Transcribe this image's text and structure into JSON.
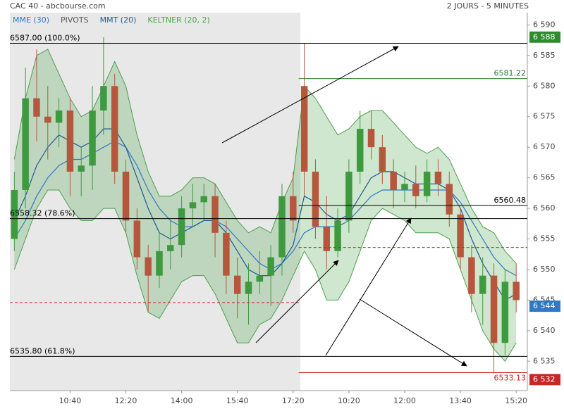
{
  "chart_data": {
    "type": "candlestick",
    "title": "CAC 40 - abcbourse.com",
    "subtitle": "2 JOURS - 5 MINUTES",
    "categories": [
      null,
      null,
      null,
      null,
      null,
      "10:40",
      null,
      null,
      null,
      null,
      "12:20",
      null,
      null,
      null,
      null,
      "14:00",
      null,
      null,
      null,
      null,
      "15:40",
      null,
      null,
      null,
      null,
      "17:20",
      null,
      null,
      null,
      null,
      "10:20",
      null,
      null,
      null,
      null,
      "12:00",
      null,
      null,
      null,
      null,
      "13:40",
      null,
      null,
      null,
      null,
      "15:20"
    ],
    "open": [
      6555,
      6563,
      6578,
      6575,
      6574,
      6576,
      6566,
      6567,
      6576,
      6580,
      6566,
      6558,
      6552,
      6549,
      6553,
      6554,
      6560,
      6561,
      6562,
      6556,
      6549,
      6546,
      6548,
      6549,
      6552,
      6562,
      6580,
      6566,
      6557,
      6553,
      6558,
      6566,
      6573,
      6570,
      6566,
      6563,
      6564,
      6562,
      6566,
      6564,
      6559,
      6552,
      6546,
      6549,
      6538,
      6548
    ],
    "high": [
      6566,
      6583,
      6586,
      6580,
      6578,
      6578,
      6570,
      6580,
      6588,
      6582,
      6568,
      6560,
      6554,
      6556,
      6558,
      6562,
      6564,
      6564,
      6564,
      6558,
      6552,
      6551,
      6553,
      6554,
      6564,
      6566,
      6587,
      6568,
      6562,
      6560,
      6568,
      6576,
      6576,
      6572,
      6568,
      6566,
      6567,
      6568,
      6568,
      6566,
      6560,
      6554,
      6552,
      6551,
      6550,
      6551
    ],
    "low": [
      6553,
      6560,
      6571,
      6568,
      6570,
      6562,
      6562,
      6563,
      6572,
      6564,
      6556,
      6550,
      6543,
      6547,
      6550,
      6552,
      6557,
      6558,
      6552,
      6546,
      6542,
      6541,
      6546,
      6544,
      6549,
      6556,
      6562,
      6555,
      6550,
      6552,
      6556,
      6564,
      6568,
      6564,
      6560,
      6561,
      6560,
      6561,
      6562,
      6557,
      6550,
      6543,
      6541,
      6533,
      6536,
      6543
    ],
    "close": [
      6563,
      6578,
      6575,
      6574,
      6576,
      6566,
      6567,
      6576,
      6580,
      6566,
      6558,
      6552,
      6549,
      6553,
      6554,
      6560,
      6561,
      6562,
      6556,
      6549,
      6546,
      6548,
      6549,
      6552,
      6562,
      6558,
      6566,
      6557,
      6553,
      6558,
      6566,
      6573,
      6570,
      6566,
      6563,
      6564,
      6562,
      6566,
      6564,
      6559,
      6552,
      6546,
      6549,
      6538,
      6548,
      6545
    ],
    "up_color": "#3f9a3f",
    "down_color": "#b5573c",
    "series": [
      {
        "name": "MME (30)",
        "color": "#2f78c4",
        "values": [
          6555,
          6558,
          6562,
          6565,
          6567,
          6568,
          6568,
          6569,
          6570,
          6571,
          6570,
          6567,
          6563,
          6560,
          6558,
          6557,
          6557,
          6558,
          6558,
          6557,
          6555,
          6553,
          6551,
          6550,
          6551,
          6553,
          6556,
          6557,
          6557,
          6557,
          6558,
          6560,
          6562,
          6563,
          6563,
          6563,
          6563,
          6563,
          6563,
          6563,
          6561,
          6558,
          6555,
          6552,
          6550,
          6549
        ]
      },
      {
        "name": "MMT (20)",
        "color": "#1d5a96",
        "values": [
          6558,
          6562,
          6567,
          6570,
          6572,
          6571,
          6570,
          6571,
          6573,
          6573,
          6570,
          6565,
          6560,
          6556,
          6555,
          6556,
          6557,
          6558,
          6558,
          6556,
          6553,
          6550,
          6549,
          6549,
          6551,
          6554,
          6562,
          6561,
          6559,
          6558,
          6559,
          6562,
          6565,
          6566,
          6566,
          6565,
          6564,
          6564,
          6564,
          6563,
          6560,
          6555,
          6551,
          6548,
          6545,
          6546
        ]
      }
    ],
    "band": {
      "name": "KELTNER (20, 2)",
      "color": "#4e9e4e",
      "fill": "rgba(80,170,80,0.28)",
      "upper": [
        6568,
        6578,
        6585,
        6586,
        6582,
        6578,
        6575,
        6576,
        6580,
        6584,
        6580,
        6572,
        6566,
        6562,
        6562,
        6563,
        6565,
        6565,
        6564,
        6561,
        6558,
        6556,
        6557,
        6556,
        6561,
        6565,
        6580,
        6578,
        6575,
        6572,
        6573,
        6575,
        6576,
        6576,
        6574,
        6572,
        6570,
        6569,
        6570,
        6568,
        6564,
        6560,
        6557,
        6556,
        6553,
        6551
      ],
      "lower": [
        6550,
        6555,
        6560,
        6563,
        6563,
        6560,
        6558,
        6558,
        6560,
        6560,
        6556,
        6549,
        6543,
        6542,
        6545,
        6548,
        6549,
        6549,
        6546,
        6542,
        6538,
        6538,
        6541,
        6542,
        6545,
        6549,
        6553,
        6550,
        6545,
        6545,
        6548,
        6553,
        6558,
        6560,
        6559,
        6558,
        6556,
        6556,
        6556,
        6555,
        6550,
        6545,
        6540,
        6537,
        6535,
        6538
      ]
    },
    "pivots": {
      "name": "PIVOTS",
      "color": "#555555",
      "levels": [
        {
          "value": 6587.0,
          "label": "6587.00  (100.0%)",
          "color": "#000000"
        },
        {
          "value": 6558.32,
          "label": "6558.32  (78.6%)",
          "color": "#000000"
        },
        {
          "value": 6535.8,
          "label": "6535.80  (61.8%)",
          "color": "#000000"
        },
        {
          "value": 6581.22,
          "label": "6581.22",
          "color": "#2e7d2e",
          "x_start": 26
        },
        {
          "value": 6560.48,
          "label": "6560.48",
          "color": "#000000",
          "x_start": 26
        },
        {
          "value": 6533.13,
          "label": "6533.13",
          "color": "#cc2222",
          "x_start": 26
        },
        {
          "value": 6553.6,
          "label": null,
          "color": "#cc2222",
          "x_start": 26,
          "dashed": true
        },
        {
          "value": 6544.6,
          "label": null,
          "color": "#cc2222",
          "x_end": 26,
          "dashed": true
        }
      ]
    },
    "price_tags": [
      {
        "value": 6588,
        "label": "6 588",
        "color": "#2e8b2e"
      },
      {
        "value": 6544,
        "label": "6 544",
        "color": "#2f78c4"
      },
      {
        "value": 6532,
        "label": "6 532",
        "color": "#c62828"
      }
    ],
    "ylim": [
      6530.2,
      6592
    ],
    "yticks": [
      {
        "value": 6535,
        "label": "6 535"
      },
      {
        "value": 6540,
        "label": "6 540"
      },
      {
        "value": 6545,
        "label": "6 545"
      },
      {
        "value": 6550,
        "label": "6 550"
      },
      {
        "value": 6555,
        "label": "6 555"
      },
      {
        "value": 6560,
        "label": "6 560"
      },
      {
        "value": 6565,
        "label": "6 565"
      },
      {
        "value": 6570,
        "label": "6 570"
      },
      {
        "value": 6575,
        "label": "6 575"
      },
      {
        "value": 6580,
        "label": "6 580"
      },
      {
        "value": 6585,
        "label": "6 585"
      },
      {
        "value": 6590,
        "label": "6 590"
      }
    ]
  }
}
